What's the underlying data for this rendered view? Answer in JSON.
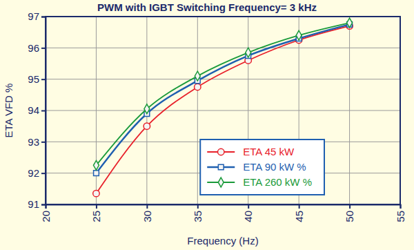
{
  "chart_data": {
    "type": "line",
    "title": "PWM with IGBT Switching Frequency= 3 kHz",
    "x_label": "Frequency (Hz)",
    "y_label": "ETA VFD %",
    "x": [
      25,
      30,
      35,
      40,
      45,
      50
    ],
    "series": [
      {
        "name": "ETA 45 kW",
        "color": "#e8202a",
        "marker": "circle",
        "values": [
          91.35,
          93.5,
          94.75,
          95.6,
          96.25,
          96.7
        ]
      },
      {
        "name": "ETA 90 kW %",
        "color": "#1f5fb0",
        "marker": "square",
        "values": [
          92.0,
          93.9,
          94.95,
          95.75,
          96.3,
          96.75
        ]
      },
      {
        "name": "ETA 260 kW %",
        "color": "#1a9a3a",
        "marker": "diamond",
        "values": [
          92.25,
          94.05,
          95.1,
          95.85,
          96.4,
          96.8
        ]
      }
    ],
    "xlim": [
      20,
      55
    ],
    "xticks": [
      20,
      25,
      30,
      35,
      40,
      45,
      50,
      55
    ],
    "ylim": [
      91,
      97
    ],
    "yticks": [
      91,
      92,
      93,
      94,
      95,
      96,
      97
    ],
    "grid": true,
    "legend": "lower right"
  }
}
